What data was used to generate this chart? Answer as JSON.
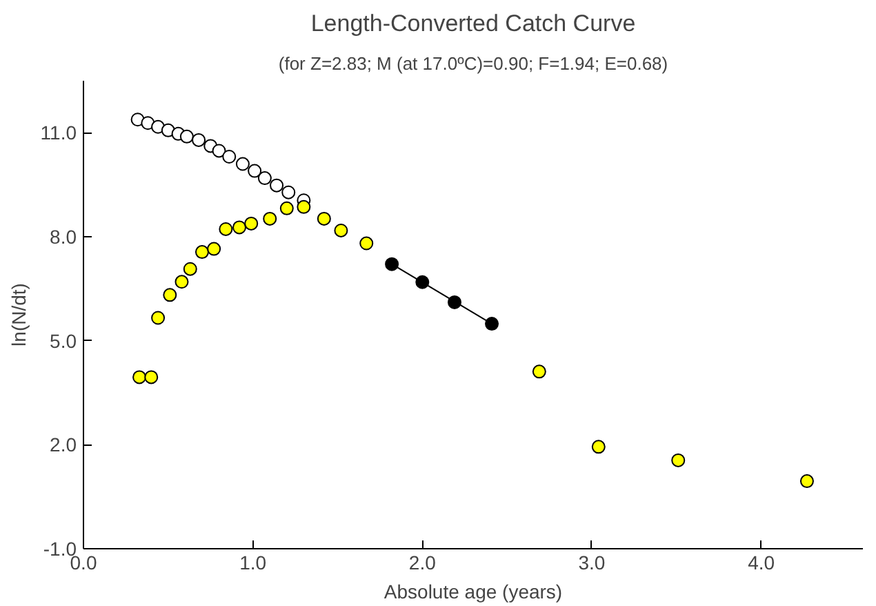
{
  "chart_data": {
    "type": "scatter",
    "title": "Length-Converted Catch Curve",
    "subtitle": "(for Z=2.83; M (at 17.0ºC)=0.90; F=1.94; E=0.68)",
    "xlabel": "Absolute age (years)",
    "ylabel": "ln(N/dt)",
    "xlim": [
      0,
      4.6
    ],
    "ylim": [
      -1.0,
      12.5
    ],
    "xticks": [
      {
        "value": 0,
        "label": "0.0"
      },
      {
        "value": 1,
        "label": "1.0"
      },
      {
        "value": 2,
        "label": "2.0"
      },
      {
        "value": 3,
        "label": "3.0"
      },
      {
        "value": 4,
        "label": "4.0"
      }
    ],
    "yticks": [
      {
        "value": -1,
        "label": "-1.0"
      },
      {
        "value": 2,
        "label": "2.0"
      },
      {
        "value": 5,
        "label": "5.0"
      },
      {
        "value": 8,
        "label": "8.0"
      },
      {
        "value": 11,
        "label": "11.0"
      }
    ],
    "grid": false,
    "marker": "circle",
    "series": [
      {
        "color": "#ffffff",
        "x": [
          0.32,
          0.38,
          0.44,
          0.5,
          0.56,
          0.61,
          0.68,
          0.75,
          0.8,
          0.86,
          0.94,
          1.01,
          1.07,
          1.14,
          1.21,
          1.3
        ],
        "values": [
          11.38,
          11.28,
          11.17,
          11.07,
          10.97,
          10.89,
          10.79,
          10.62,
          10.48,
          10.31,
          10.1,
          9.9,
          9.69,
          9.48,
          9.28,
          9.05
        ]
      },
      {
        "type": "line",
        "color": "#000000",
        "x": [
          1.82,
          2.41
        ],
        "values": [
          7.21,
          5.49
        ],
        "marker": "none"
      },
      {
        "color": "#000000",
        "x": [
          1.82,
          2.0,
          2.19,
          2.41
        ],
        "values": [
          7.21,
          6.69,
          6.11,
          5.49
        ]
      },
      {
        "color": "#ffff00",
        "x": [
          0.33,
          0.4,
          0.44,
          0.51,
          0.58,
          0.63,
          0.7,
          0.77,
          0.84,
          0.92,
          0.99,
          1.1,
          1.2,
          1.3,
          1.42,
          1.52,
          1.67,
          2.69,
          3.04,
          3.51,
          4.27
        ],
        "values": [
          3.95,
          3.95,
          5.66,
          6.32,
          6.7,
          7.07,
          7.56,
          7.65,
          8.22,
          8.27,
          8.38,
          8.52,
          8.82,
          8.86,
          8.52,
          8.18,
          7.81,
          4.11,
          1.94,
          1.55,
          0.95
        ]
      }
    ]
  }
}
